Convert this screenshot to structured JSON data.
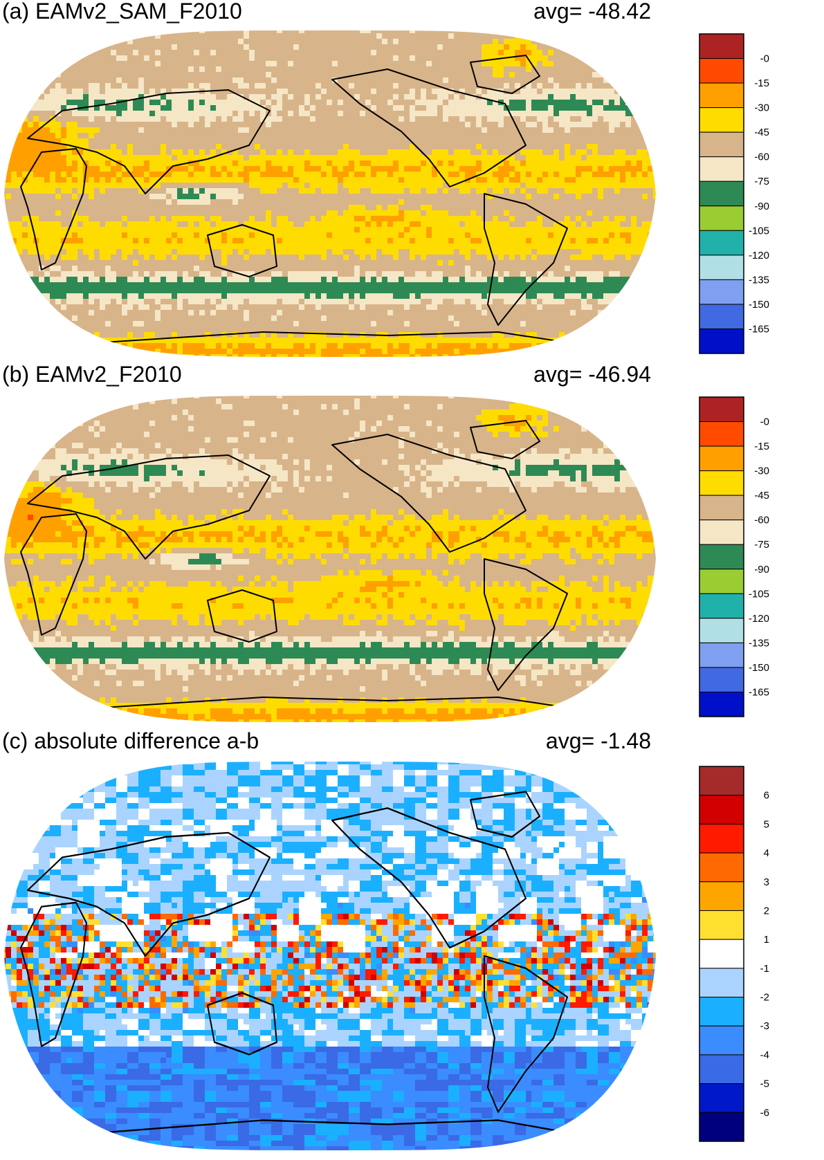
{
  "panels": [
    {
      "id": "a",
      "title": "(a) EAMv2_SAM_F2010",
      "avg_label": "avg=  -48.42",
      "colorbar": {
        "labels": [
          "-0",
          "-15",
          "-30",
          "-45",
          "-60",
          "-75",
          "-90",
          "-105",
          "-120",
          "-135",
          "-150",
          "-165"
        ],
        "colors": [
          "#ad2323",
          "#ff4a00",
          "#ffa000",
          "#ffdc00",
          "#d8b48a",
          "#f5e6c6",
          "#2e8a54",
          "#9acd32",
          "#20b2aa",
          "#b0e0e6",
          "#7f9ff0",
          "#4169e1",
          "#0010c8"
        ]
      }
    },
    {
      "id": "b",
      "title": "(b) EAMv2_F2010",
      "avg_label": "avg=  -46.94",
      "colorbar": {
        "labels": [
          "-0",
          "-15",
          "-30",
          "-45",
          "-60",
          "-75",
          "-90",
          "-105",
          "-120",
          "-135",
          "-150",
          "-165"
        ],
        "colors": [
          "#ad2323",
          "#ff4a00",
          "#ffa000",
          "#ffdc00",
          "#d8b48a",
          "#f5e6c6",
          "#2e8a54",
          "#9acd32",
          "#20b2aa",
          "#b0e0e6",
          "#7f9ff0",
          "#4169e1",
          "#0010c8"
        ]
      }
    },
    {
      "id": "c",
      "title": "(c) absolute difference a-b",
      "avg_label": "avg=   -1.48",
      "colorbar": {
        "labels": [
          "6",
          "5",
          "4",
          "3",
          "2",
          "1",
          "-1",
          "-2",
          "-3",
          "-4",
          "-5",
          "-6"
        ],
        "colors": [
          "#a52a2a",
          "#d20000",
          "#ff1a00",
          "#ff6a00",
          "#ffa500",
          "#ffe030",
          "#ffffff",
          "#aad4ff",
          "#1ab0ff",
          "#3a8cff",
          "#3a6ae6",
          "#0019c8",
          "#00007f"
        ]
      }
    }
  ]
}
